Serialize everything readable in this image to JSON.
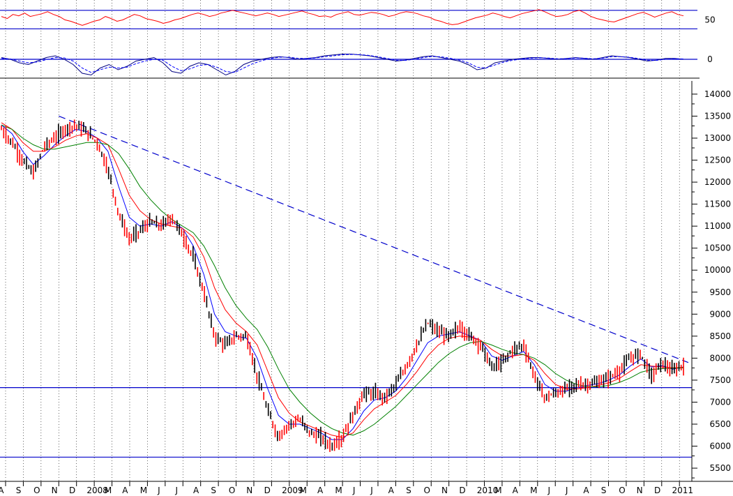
{
  "colors": {
    "background": "#ffffff",
    "price_up": "#000000",
    "price_down": "#ff0000",
    "ma_fast": "#0000ff",
    "ma_mid": "#ff0000",
    "ma_slow": "#008000",
    "trendline": "#0000cc",
    "support": "#0000cc",
    "rsi": "#ff0000",
    "macd": "#000080",
    "macd_signal": "#0000ff",
    "grid": "#000000",
    "axis": "#000000"
  },
  "chart_data": [
    {
      "type": "line",
      "panel": "rsi",
      "y_tick_labels": [
        "50"
      ],
      "reference_levels": [
        64,
        37
      ],
      "ylim": [
        20,
        75
      ],
      "series": [
        {
          "values": [
            55,
            52,
            58,
            56,
            60,
            55,
            57,
            59,
            62,
            58,
            55,
            50,
            48,
            45,
            42,
            45,
            48,
            50,
            55,
            52,
            48,
            50,
            54,
            58,
            56,
            52,
            50,
            48,
            45,
            47,
            50,
            52,
            55,
            58,
            60,
            58,
            55,
            57,
            60,
            62,
            64,
            62,
            60,
            58,
            56,
            58,
            60,
            58,
            55,
            57,
            59,
            61,
            63,
            60,
            58,
            55,
            56,
            54,
            58,
            60,
            62,
            58,
            57,
            59,
            61,
            60,
            58,
            55,
            57,
            60,
            62,
            61,
            59,
            56,
            54,
            50,
            48,
            45,
            43,
            44,
            47,
            50,
            53,
            55,
            57,
            60,
            58,
            55,
            53,
            56,
            59,
            61,
            63,
            65,
            62,
            58,
            55,
            56,
            58,
            62,
            64,
            60,
            55,
            52,
            50,
            48,
            47,
            50,
            53,
            56,
            59,
            61,
            58,
            54,
            57,
            60,
            62,
            58,
            56
          ]
        }
      ]
    },
    {
      "type": "line",
      "panel": "macd",
      "y_tick_labels": [
        "0"
      ],
      "ylim": [
        -1,
        1
      ],
      "series": [
        {
          "values": [
            0.1,
            0.0,
            -0.2,
            -0.3,
            -0.1,
            0.1,
            0.2,
            0.0,
            -0.3,
            -0.8,
            -0.9,
            -0.5,
            -0.3,
            -0.6,
            -0.4,
            -0.1,
            0.0,
            0.1,
            -0.2,
            -0.7,
            -0.8,
            -0.4,
            -0.2,
            -0.3,
            -0.6,
            -0.9,
            -0.7,
            -0.3,
            -0.1,
            0.0,
            0.1,
            0.15,
            0.1,
            0.0,
            0.05,
            0.1,
            0.2,
            0.25,
            0.3,
            0.3,
            0.25,
            0.2,
            0.1,
            0.0,
            -0.1,
            -0.05,
            0.05,
            0.15,
            0.2,
            0.1,
            0.0,
            -0.1,
            -0.3,
            -0.6,
            -0.5,
            -0.2,
            -0.1,
            0.0,
            0.05,
            0.1,
            0.1,
            0.05,
            0.0,
            0.05,
            0.1,
            0.05,
            0.0,
            0.1,
            0.2,
            0.15,
            0.1,
            0.0,
            -0.1,
            -0.05,
            0.05,
            0.05,
            0.0
          ]
        },
        {
          "values": [
            0.05,
            0.02,
            -0.1,
            -0.2,
            -0.15,
            -0.02,
            0.1,
            0.08,
            -0.1,
            -0.5,
            -0.75,
            -0.6,
            -0.45,
            -0.5,
            -0.45,
            -0.25,
            -0.1,
            0.0,
            -0.05,
            -0.4,
            -0.65,
            -0.55,
            -0.35,
            -0.3,
            -0.45,
            -0.7,
            -0.75,
            -0.5,
            -0.25,
            -0.08,
            0.05,
            0.12,
            0.12,
            0.06,
            0.04,
            0.08,
            0.15,
            0.2,
            0.26,
            0.28,
            0.27,
            0.22,
            0.14,
            0.05,
            -0.05,
            -0.06,
            0.0,
            0.1,
            0.16,
            0.14,
            0.06,
            -0.04,
            -0.2,
            -0.45,
            -0.5,
            -0.32,
            -0.16,
            -0.05,
            0.02,
            0.07,
            0.09,
            0.07,
            0.03,
            0.04,
            0.08,
            0.06,
            0.03,
            0.07,
            0.15,
            0.15,
            0.12,
            0.04,
            -0.05,
            -0.06,
            0.0,
            0.03,
            0.02
          ]
        }
      ]
    },
    {
      "type": "line",
      "panel": "price",
      "y_tick_labels": [
        "5500",
        "6000",
        "6500",
        "7000",
        "7500",
        "8000",
        "8500",
        "9000",
        "9500",
        "10000",
        "10500",
        "11000",
        "11500",
        "12000",
        "12500",
        "13000",
        "13500",
        "14000"
      ],
      "ylim": [
        5200,
        14300
      ],
      "x_tick_labels": [
        "A",
        "S",
        "O",
        "N",
        "D",
        "2008",
        "M",
        "A",
        "M",
        "J",
        "J",
        "A",
        "S",
        "O",
        "N",
        "D",
        "2009",
        "M",
        "A",
        "M",
        "J",
        "J",
        "A",
        "S",
        "O",
        "N",
        "D",
        "2010",
        "M",
        "A",
        "M",
        "J",
        "J",
        "A",
        "S",
        "O",
        "N",
        "D",
        "2011"
      ],
      "reference_levels": [
        7330,
        5750
      ],
      "trendline": {
        "from": [
          3,
          13500
        ],
        "to": [
          38.5,
          7900
        ]
      },
      "series": [
        {
          "values": [
            13200,
            12900,
            12500,
            12200,
            12800,
            13000,
            13200,
            13300,
            13150,
            12900,
            12300,
            11300,
            10700,
            10900,
            11100,
            11000,
            11200,
            10800,
            10300,
            9500,
            8500,
            8300,
            8500,
            8500,
            7600,
            6800,
            6200,
            6500,
            6600,
            6300,
            6200,
            6000,
            6200,
            6700,
            7200,
            7200,
            7100,
            7400,
            7800,
            8300,
            8800,
            8600,
            8500,
            8700,
            8500,
            8300,
            7800,
            7900,
            8200,
            8300,
            7600,
            7100,
            7200,
            7300,
            7400,
            7400,
            7450,
            7550,
            7700,
            8000,
            8100,
            7600,
            7900,
            7700,
            7850
          ]
        },
        {
          "values": [
            13300,
            13100,
            12700,
            12400,
            12600,
            12850,
            13050,
            13200,
            13150,
            13000,
            12700,
            11900,
            11200,
            11000,
            11050,
            11000,
            11100,
            10950,
            10550,
            9900,
            9000,
            8600,
            8500,
            8450,
            8000,
            7300,
            6700,
            6500,
            6500,
            6400,
            6300,
            6150,
            6150,
            6400,
            6800,
            7050,
            7100,
            7250,
            7550,
            7950,
            8350,
            8500,
            8550,
            8600,
            8500,
            8400,
            8050,
            7950,
            8050,
            8150,
            7850,
            7400,
            7250,
            7250,
            7330,
            7380,
            7420,
            7500,
            7620,
            7820,
            7980,
            7800,
            7830,
            7750,
            7800
          ]
        },
        {
          "values": [
            13350,
            13200,
            12900,
            12700,
            12700,
            12800,
            12950,
            13050,
            13100,
            13000,
            12850,
            12300,
            11700,
            11350,
            11150,
            11050,
            11000,
            10950,
            10750,
            10300,
            9600,
            9100,
            8800,
            8600,
            8300,
            7700,
            7100,
            6750,
            6550,
            6450,
            6350,
            6250,
            6200,
            6300,
            6600,
            6850,
            7000,
            7150,
            7400,
            7700,
            8050,
            8300,
            8450,
            8500,
            8480,
            8400,
            8200,
            8050,
            8050,
            8080,
            7950,
            7650,
            7400,
            7300,
            7300,
            7330,
            7380,
            7440,
            7540,
            7700,
            7850,
            7820,
            7800,
            7780,
            7790
          ]
        },
        {
          "values": [
            13300,
            13200,
            13000,
            12850,
            12750,
            12750,
            12800,
            12850,
            12900,
            12900,
            12850,
            12650,
            12300,
            11900,
            11600,
            11350,
            11150,
            11000,
            10850,
            10550,
            10100,
            9600,
            9200,
            8900,
            8650,
            8250,
            7750,
            7300,
            7000,
            6750,
            6550,
            6400,
            6300,
            6250,
            6350,
            6500,
            6700,
            6900,
            7150,
            7400,
            7650,
            7900,
            8100,
            8250,
            8350,
            8380,
            8300,
            8200,
            8120,
            8080,
            8000,
            7850,
            7650,
            7500,
            7400,
            7350,
            7350,
            7380,
            7450,
            7550,
            7680,
            7740,
            7760,
            7770,
            7780
          ]
        }
      ]
    }
  ]
}
